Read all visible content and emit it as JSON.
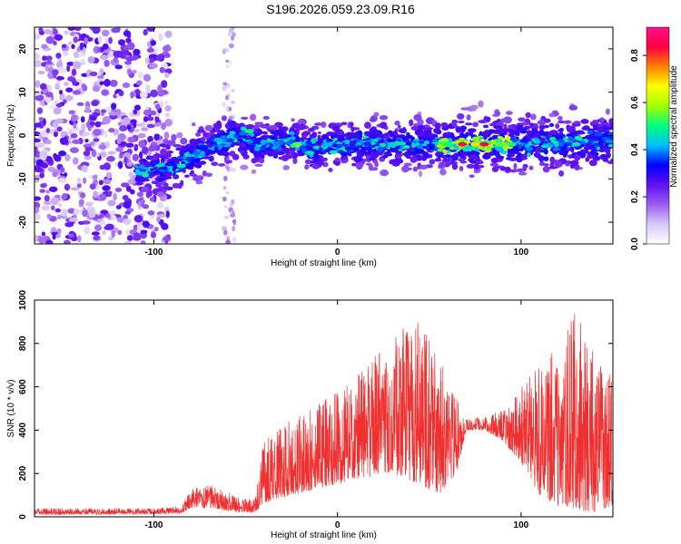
{
  "title": "S196.2026.059.23.09.R16",
  "chart_data": [
    {
      "type": "heatmap",
      "name": "spectrogram",
      "xlabel": "Height of straight line (km)",
      "ylabel": "Frequency (Hz)",
      "xlim": [
        -165,
        150
      ],
      "ylim": [
        -25,
        25
      ],
      "xticks": [
        -100,
        0,
        100
      ],
      "yticks": [
        -20,
        -10,
        0,
        10,
        20
      ],
      "colorbar": {
        "label": "Normalized spectral amplitude",
        "range": [
          0,
          0.92
        ],
        "ticks": [
          0.0,
          0.2,
          0.4,
          0.6,
          0.8
        ],
        "colormap": [
          "#ffffff",
          "#d8c8f8",
          "#9a5cf0",
          "#6010f0",
          "#0000ff",
          "#00c0ff",
          "#00ff80",
          "#a0ff00",
          "#ffff00",
          "#ff8000",
          "#ff0040",
          "#ff1090"
        ]
      },
      "ridge": {
        "description_points_x": [
          -110,
          -95,
          -88,
          -80,
          -70,
          -60,
          -52,
          -45,
          -35,
          -25,
          -15,
          0,
          20,
          40,
          60,
          80,
          100,
          120,
          140,
          150
        ],
        "description_points_y": [
          -8,
          -8,
          -7,
          -5,
          -3,
          -1,
          0,
          -2,
          -2,
          -1,
          -3,
          -2,
          -2,
          -2,
          -2,
          -2,
          -2,
          -2,
          -1,
          -1
        ]
      }
    },
    {
      "type": "line",
      "name": "snr",
      "xlabel": "Height of straight line (km)",
      "ylabel": "SNR (10 * v/v)",
      "xlim": [
        -165,
        150
      ],
      "ylim": [
        0,
        1000
      ],
      "xticks": [
        -100,
        0,
        100
      ],
      "yticks": [
        0,
        200,
        400,
        600,
        800,
        1000
      ],
      "color": "#f03030",
      "envelope": {
        "x": [
          -165,
          -100,
          -85,
          -80,
          -70,
          -62,
          -55,
          -45,
          -40,
          -35,
          -25,
          -15,
          0,
          15,
          30,
          45,
          55,
          65,
          70,
          80,
          90,
          100,
          110,
          120,
          130,
          140,
          150
        ],
        "low": [
          10,
          12,
          15,
          40,
          40,
          30,
          20,
          20,
          60,
          80,
          100,
          120,
          150,
          180,
          200,
          150,
          100,
          200,
          400,
          400,
          350,
          250,
          100,
          50,
          30,
          20,
          50
        ],
        "high": [
          40,
          40,
          50,
          130,
          150,
          130,
          90,
          80,
          350,
          400,
          450,
          500,
          580,
          700,
          850,
          900,
          750,
          550,
          450,
          460,
          500,
          600,
          700,
          800,
          950,
          750,
          650
        ]
      }
    }
  ]
}
